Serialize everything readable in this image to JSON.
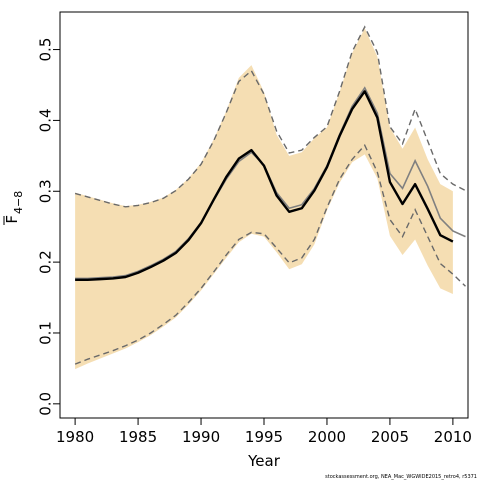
{
  "chart_data": {
    "type": "line",
    "xlabel": "Year",
    "ylabel": {
      "main": "F",
      "sub": "4−8"
    },
    "xlim": [
      1978.8,
      2011.2
    ],
    "ylim": [
      -0.02,
      0.553
    ],
    "x_ticks": [
      1980,
      1985,
      1990,
      1995,
      2000,
      2005,
      2010
    ],
    "x_tick_labels": [
      "1980",
      "1985",
      "1990",
      "1995",
      "2000",
      "2005",
      "2010"
    ],
    "y_ticks": [
      0.0,
      0.1,
      0.2,
      0.3,
      0.4,
      0.5
    ],
    "y_tick_labels": [
      "0.0",
      "0.1",
      "0.2",
      "0.3",
      "0.4",
      "0.5"
    ],
    "footnote": "stockassessment.org, NEA_Mac_WGWIDE2015_retro4, r5371",
    "colors": {
      "band": "#f5deb3",
      "estimate": "#000000",
      "retro": "#808080",
      "retro_ci": "#696969"
    },
    "series": [
      {
        "role": "confidence-band",
        "x": [
          1980,
          1981,
          1982,
          1983,
          1984,
          1985,
          1986,
          1987,
          1988,
          1989,
          1990,
          1991,
          1992,
          1993,
          1994,
          1995,
          1996,
          1997,
          1998,
          1999,
          2000,
          2001,
          2002,
          2003,
          2004,
          2005,
          2006,
          2007,
          2008,
          2009,
          2010
        ],
        "lower": [
          0.049,
          0.057,
          0.064,
          0.071,
          0.078,
          0.087,
          0.097,
          0.109,
          0.122,
          0.14,
          0.16,
          0.183,
          0.206,
          0.228,
          0.24,
          0.236,
          0.214,
          0.19,
          0.197,
          0.225,
          0.273,
          0.312,
          0.341,
          0.352,
          0.318,
          0.237,
          0.21,
          0.232,
          0.195,
          0.163,
          0.155
        ],
        "upper": [
          0.298,
          0.293,
          0.288,
          0.283,
          0.279,
          0.281,
          0.285,
          0.291,
          0.302,
          0.318,
          0.34,
          0.373,
          0.413,
          0.46,
          0.478,
          0.44,
          0.38,
          0.35,
          0.355,
          0.375,
          0.39,
          0.44,
          0.495,
          0.53,
          0.49,
          0.39,
          0.36,
          0.39,
          0.345,
          0.31,
          0.3
        ]
      },
      {
        "role": "estimate",
        "x": [
          1980,
          1981,
          1982,
          1983,
          1984,
          1985,
          1986,
          1987,
          1988,
          1989,
          1990,
          1991,
          1992,
          1993,
          1994,
          1995,
          1996,
          1997,
          1998,
          1999,
          2000,
          2001,
          2002,
          2003,
          2004,
          2005,
          2006,
          2007,
          2008,
          2009,
          2010
        ],
        "values": [
          0.175,
          0.175,
          0.176,
          0.177,
          0.179,
          0.185,
          0.193,
          0.202,
          0.213,
          0.231,
          0.255,
          0.288,
          0.32,
          0.346,
          0.358,
          0.336,
          0.294,
          0.271,
          0.276,
          0.301,
          0.334,
          0.378,
          0.416,
          0.441,
          0.404,
          0.313,
          0.282,
          0.31,
          0.275,
          0.238,
          0.229
        ]
      },
      {
        "role": "retrospective-estimate",
        "x": [
          1980,
          1981,
          1982,
          1983,
          1984,
          1985,
          1986,
          1987,
          1988,
          1989,
          1990,
          1991,
          1992,
          1993,
          1994,
          1995,
          1996,
          1997,
          1998,
          1999,
          2000,
          2001,
          2002,
          2003,
          2004,
          2005,
          2006,
          2007,
          2008,
          2009,
          2010,
          2011
        ],
        "values": [
          0.177,
          0.177,
          0.178,
          0.179,
          0.181,
          0.187,
          0.195,
          0.204,
          0.215,
          0.233,
          0.256,
          0.287,
          0.317,
          0.342,
          0.355,
          0.337,
          0.298,
          0.276,
          0.281,
          0.304,
          0.336,
          0.38,
          0.42,
          0.446,
          0.41,
          0.325,
          0.304,
          0.343,
          0.307,
          0.262,
          0.244,
          0.236
        ]
      },
      {
        "role": "retrospective-upper",
        "x": [
          1980,
          1981,
          1982,
          1983,
          1984,
          1985,
          1986,
          1987,
          1988,
          1989,
          1990,
          1991,
          1992,
          1993,
          1994,
          1995,
          1996,
          1997,
          1998,
          1999,
          2000,
          2001,
          2002,
          2003,
          2004,
          2005,
          2006,
          2007,
          2008,
          2009,
          2010,
          2011
        ],
        "values": [
          0.297,
          0.292,
          0.287,
          0.282,
          0.278,
          0.28,
          0.284,
          0.29,
          0.301,
          0.317,
          0.338,
          0.371,
          0.411,
          0.455,
          0.47,
          0.437,
          0.385,
          0.354,
          0.358,
          0.376,
          0.391,
          0.441,
          0.497,
          0.532,
          0.496,
          0.391,
          0.367,
          0.416,
          0.371,
          0.325,
          0.31,
          0.301
        ]
      },
      {
        "role": "retrospective-lower",
        "x": [
          1980,
          1981,
          1982,
          1983,
          1984,
          1985,
          1986,
          1987,
          1988,
          1989,
          1990,
          1991,
          1992,
          1993,
          1994,
          1995,
          1996,
          1997,
          1998,
          1999,
          2000,
          2001,
          2002,
          2003,
          2004,
          2005,
          2006,
          2007,
          2008,
          2009,
          2010,
          2011
        ],
        "values": [
          0.056,
          0.063,
          0.069,
          0.075,
          0.082,
          0.09,
          0.1,
          0.112,
          0.125,
          0.143,
          0.163,
          0.186,
          0.21,
          0.232,
          0.242,
          0.24,
          0.22,
          0.199,
          0.206,
          0.232,
          0.277,
          0.317,
          0.345,
          0.365,
          0.327,
          0.26,
          0.236,
          0.274,
          0.236,
          0.198,
          0.183,
          0.166
        ]
      }
    ]
  }
}
